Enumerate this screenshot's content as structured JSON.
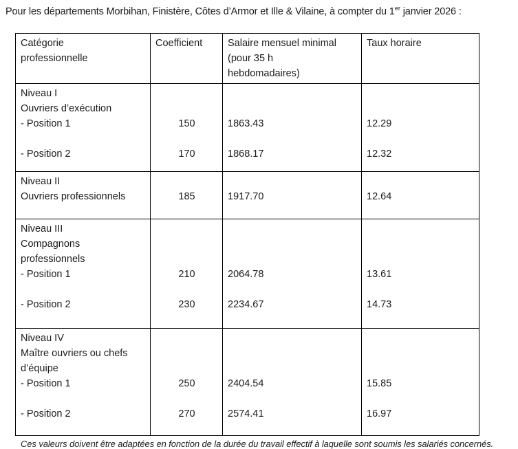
{
  "intro": {
    "prefix": "Pour les départements Morbihan, Finistère, Côtes d’Armor et Ille & Vilaine, à compter du 1",
    "superscript": "er",
    "suffix": " janvier 2026 :"
  },
  "table": {
    "header": {
      "category": [
        {
          "text": "Catégorie"
        },
        {
          "text": "professionnelle"
        }
      ],
      "coefficient": [
        {
          "text": "Coefficient"
        }
      ],
      "salary": [
        {
          "text": "Salaire mensuel minimal"
        },
        {
          "text": "(pour 35 h"
        },
        {
          "text": "hebdomadaires)"
        }
      ],
      "rate": [
        {
          "text": "Taux horaire"
        }
      ]
    },
    "blocks": [
      {
        "lines": [
          {
            "category": "Niveau I"
          },
          {
            "category": "Ouvriers d’exécution"
          },
          {
            "category": "- Position 1",
            "coefficient": "150",
            "salary": "1863.43",
            "rate": "12.29"
          },
          {},
          {
            "category": "- Position 2",
            "coefficient": "170",
            "salary": "1868.17",
            "rate": "12.32"
          }
        ]
      },
      {
        "lines": [
          {
            "category": "Niveau II"
          },
          {
            "category": "Ouvriers professionnels",
            "coefficient": "185",
            "salary": "1917.70",
            "rate": "12.64"
          }
        ]
      },
      {
        "lines": [
          {
            "category": "Niveau III"
          },
          {
            "category": "Compagnons"
          },
          {
            "category": "professionnels"
          },
          {
            "category": "- Position 1",
            "coefficient": "210",
            "salary": "2064.78",
            "rate": "13.61"
          },
          {},
          {
            "category": "- Position 2",
            "coefficient": "230",
            "salary": "2234.67",
            "rate": "14.73"
          }
        ]
      },
      {
        "lines": [
          {
            "category": "Niveau IV"
          },
          {
            "category": "Maître ouvriers ou chefs"
          },
          {
            "category": "d’équipe"
          },
          {
            "category": "- Position 1",
            "coefficient": "250",
            "salary": "2404.54",
            "rate": "15.85"
          },
          {},
          {
            "category": "- Position 2",
            "coefficient": "270",
            "salary": "2574.41",
            "rate": "16.97"
          }
        ]
      }
    ]
  },
  "footnote": "Ces valeurs doivent être adaptées en fonction de la durée du travail effectif à laquelle sont soumis les salariés concernés."
}
